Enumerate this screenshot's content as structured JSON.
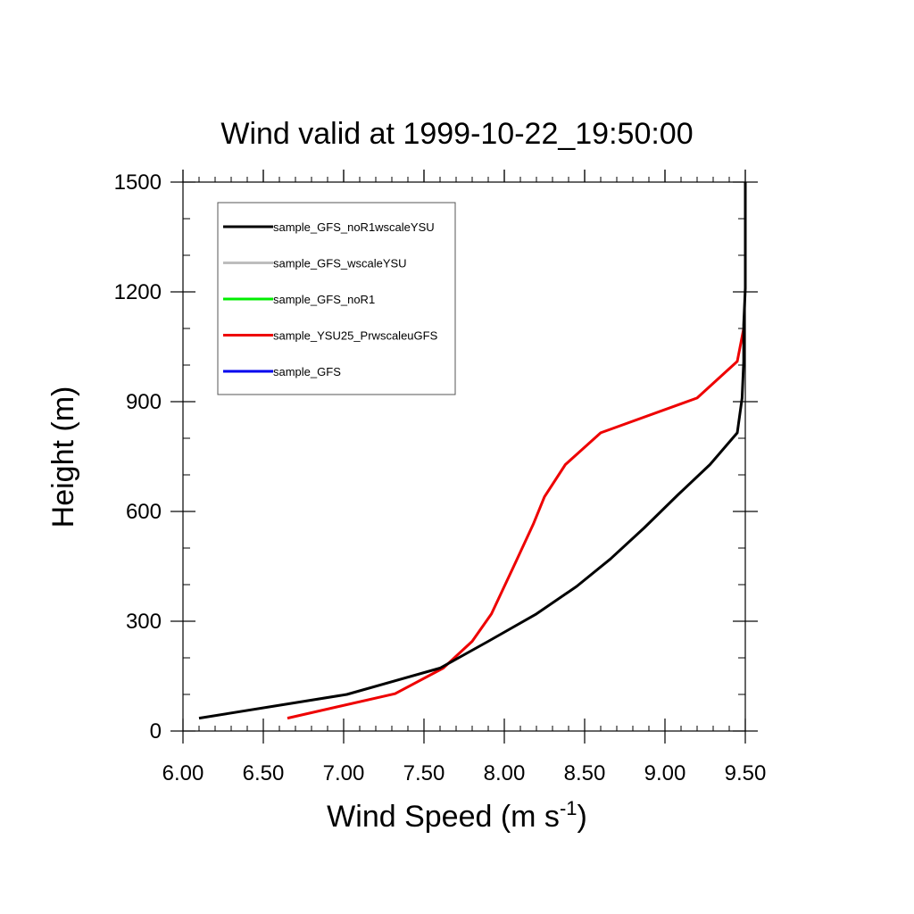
{
  "colors": {
    "sample_GFS_noR1wscaleYSU": "#000000",
    "sample_GFS_wscaleYSU": "#bdbdbd",
    "sample_GFS_noR1": "#00ee00",
    "sample_YSU25_PrwscaleuGFS": "#ee0000",
    "sample_GFS": "#0000ee"
  },
  "chart_data": {
    "type": "line",
    "title": "Wind valid at 1999-10-22_19:50:00",
    "xlabel": "Wind Speed (m s",
    "xlabel_superscript": "-1",
    "xlabel_suffix": ")",
    "ylabel": "Height (m)",
    "xlim": [
      6.0,
      9.5
    ],
    "ylim": [
      0,
      1500
    ],
    "x_ticks": [
      "6.00",
      "6.50",
      "7.00",
      "7.50",
      "8.00",
      "8.50",
      "9.00",
      "9.50"
    ],
    "y_ticks": [
      "0",
      "300",
      "600",
      "900",
      "1200",
      "1500"
    ],
    "legend_position": "top-left",
    "series": [
      {
        "name": "sample_GFS_noR1wscaleYSU",
        "points": [
          [
            6.1,
            35
          ],
          [
            7.02,
            100
          ],
          [
            7.6,
            172
          ],
          [
            7.9,
            245
          ],
          [
            8.2,
            320
          ],
          [
            8.45,
            395
          ],
          [
            8.66,
            470
          ],
          [
            8.87,
            555
          ],
          [
            9.08,
            645
          ],
          [
            9.28,
            728
          ],
          [
            9.45,
            815
          ],
          [
            9.48,
            910
          ],
          [
            9.49,
            1010
          ],
          [
            9.49,
            1110
          ],
          [
            9.5,
            1210
          ],
          [
            9.5,
            1310
          ],
          [
            9.5,
            1410
          ],
          [
            9.5,
            1500
          ]
        ]
      },
      {
        "name": "sample_GFS_wscaleYSU",
        "points": []
      },
      {
        "name": "sample_GFS_noR1",
        "points": []
      },
      {
        "name": "sample_YSU25_PrwscaleuGFS",
        "points": [
          [
            6.65,
            35
          ],
          [
            7.32,
            102
          ],
          [
            7.62,
            172
          ],
          [
            7.8,
            245
          ],
          [
            7.92,
            320
          ],
          [
            8.0,
            395
          ],
          [
            8.08,
            470
          ],
          [
            8.18,
            565
          ],
          [
            8.25,
            640
          ],
          [
            8.38,
            728
          ],
          [
            8.6,
            815
          ],
          [
            9.2,
            910
          ],
          [
            9.45,
            1010
          ],
          [
            9.49,
            1100
          ]
        ]
      },
      {
        "name": "sample_GFS",
        "points": []
      }
    ]
  }
}
